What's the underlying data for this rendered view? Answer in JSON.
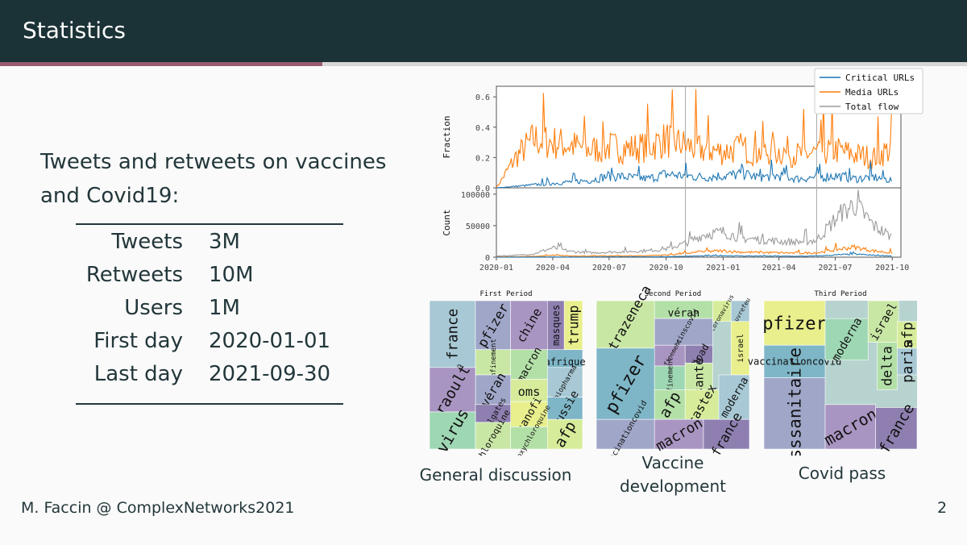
{
  "header": {
    "title": "Statistics",
    "progress_fraction": 0.333
  },
  "intro": {
    "text": "Tweets and retweets on vaccines and Covid19:"
  },
  "stats": [
    {
      "label": "Tweets",
      "value": "3M"
    },
    {
      "label": "Retweets",
      "value": "10M"
    },
    {
      "label": "Users",
      "value": "1M"
    },
    {
      "label": "First day",
      "value": "2020-01-01"
    },
    {
      "label": "Last day",
      "value": "2021-09-30"
    }
  ],
  "footer": {
    "author": "M. Faccin @ ComplexNetworks2021",
    "page": "2"
  },
  "colors": {
    "critical": "#1f77b4",
    "media": "#ff7f0e",
    "total": "#9b9b9b",
    "header_bg": "#1b3236",
    "accent": "#9a5b72"
  },
  "chart_data": [
    {
      "type": "line",
      "ylabel": "Fraction",
      "ylim": [
        0,
        0.67
      ],
      "yticks": [
        "0.0",
        "0.2",
        "0.4",
        "0.6"
      ],
      "xlim": [
        "2020-01-01",
        "2021-10-15"
      ],
      "xticks": [
        "2020-01",
        "2020-04",
        "2020-07",
        "2020-10",
        "2021-01",
        "2021-04",
        "2021-07",
        "2021-10"
      ],
      "vlines": [
        "2020-11-01",
        "2021-06-01"
      ],
      "legend": {
        "position": "top-right",
        "entries": [
          "Critical URLs",
          "Media URLs",
          "Total flow"
        ]
      },
      "series": [
        {
          "name": "Critical URLs",
          "x": [
            "2020-01-01",
            "2020-02-01",
            "2020-03-01",
            "2020-04-01",
            "2020-05-01",
            "2020-06-01",
            "2020-07-01",
            "2020-08-01",
            "2020-09-01",
            "2020-10-01",
            "2020-11-01",
            "2020-12-01",
            "2021-01-01",
            "2021-02-01",
            "2021-03-01",
            "2021-04-01",
            "2021-05-01",
            "2021-06-01",
            "2021-07-01",
            "2021-08-01",
            "2021-09-01",
            "2021-09-30"
          ],
          "y": [
            0.0,
            0.01,
            0.02,
            0.03,
            0.04,
            0.05,
            0.08,
            0.07,
            0.06,
            0.09,
            0.08,
            0.07,
            0.08,
            0.09,
            0.07,
            0.08,
            0.06,
            0.07,
            0.08,
            0.06,
            0.07,
            0.05
          ]
        },
        {
          "name": "Media URLs",
          "x": [
            "2020-01-01",
            "2020-02-01",
            "2020-03-01",
            "2020-04-01",
            "2020-05-01",
            "2020-06-01",
            "2020-07-01",
            "2020-08-01",
            "2020-09-01",
            "2020-10-01",
            "2020-11-01",
            "2020-12-01",
            "2021-01-01",
            "2021-02-01",
            "2021-03-01",
            "2021-04-01",
            "2021-05-01",
            "2021-06-01",
            "2021-07-01",
            "2021-08-01",
            "2021-09-01",
            "2021-09-30"
          ],
          "y": [
            0.0,
            0.2,
            0.32,
            0.3,
            0.28,
            0.25,
            0.27,
            0.26,
            0.27,
            0.32,
            0.28,
            0.25,
            0.24,
            0.26,
            0.23,
            0.24,
            0.22,
            0.23,
            0.25,
            0.22,
            0.2,
            0.26
          ]
        }
      ]
    },
    {
      "type": "line",
      "ylabel": "Count",
      "ylim": [
        0,
        110000
      ],
      "yticks": [
        "0",
        "50000",
        "100000"
      ],
      "xlim": [
        "2020-01-01",
        "2021-10-15"
      ],
      "xticks": [
        "2020-01",
        "2020-04",
        "2020-07",
        "2020-10",
        "2021-01",
        "2021-04",
        "2021-07",
        "2021-10"
      ],
      "vlines": [
        "2020-11-01",
        "2021-06-01"
      ],
      "series": [
        {
          "name": "Total flow",
          "x": [
            "2020-01-01",
            "2020-02-01",
            "2020-03-01",
            "2020-04-01",
            "2020-05-01",
            "2020-06-01",
            "2020-07-01",
            "2020-08-01",
            "2020-09-01",
            "2020-10-01",
            "2020-11-01",
            "2020-12-01",
            "2021-01-01",
            "2021-02-01",
            "2021-03-01",
            "2021-04-01",
            "2021-05-01",
            "2021-06-01",
            "2021-07-01",
            "2021-08-01",
            "2021-09-01",
            "2021-09-30"
          ],
          "y": [
            2000,
            3000,
            5000,
            15000,
            9000,
            7000,
            8000,
            9000,
            10000,
            13000,
            22000,
            36000,
            40000,
            30000,
            28000,
            25000,
            24000,
            27000,
            60000,
            85000,
            50000,
            32000
          ]
        },
        {
          "name": "Media URLs",
          "x": [
            "2020-01-01",
            "2020-02-01",
            "2020-03-01",
            "2020-04-01",
            "2020-05-01",
            "2020-06-01",
            "2020-07-01",
            "2020-08-01",
            "2020-09-01",
            "2020-10-01",
            "2020-11-01",
            "2020-12-01",
            "2021-01-01",
            "2021-02-01",
            "2021-03-01",
            "2021-04-01",
            "2021-05-01",
            "2021-06-01",
            "2021-07-01",
            "2021-08-01",
            "2021-09-01",
            "2021-09-30"
          ],
          "y": [
            500,
            700,
            1200,
            3000,
            2000,
            1800,
            2000,
            2200,
            2500,
            3500,
            6000,
            9000,
            10000,
            8000,
            7500,
            7000,
            6500,
            7000,
            12000,
            16000,
            10000,
            7000
          ]
        },
        {
          "name": "Critical URLs",
          "x": [
            "2020-01-01",
            "2020-02-01",
            "2020-03-01",
            "2020-04-01",
            "2020-05-01",
            "2020-06-01",
            "2020-07-01",
            "2020-08-01",
            "2020-09-01",
            "2020-10-01",
            "2020-11-01",
            "2020-12-01",
            "2021-01-01",
            "2021-02-01",
            "2021-03-01",
            "2021-04-01",
            "2021-05-01",
            "2021-06-01",
            "2021-07-01",
            "2021-08-01",
            "2021-09-01",
            "2021-09-30"
          ],
          "y": [
            0,
            100,
            200,
            400,
            300,
            300,
            500,
            500,
            500,
            800,
            1500,
            2000,
            2500,
            2000,
            1800,
            1700,
            1500,
            1800,
            3500,
            5000,
            3000,
            2000
          ]
        }
      ]
    },
    {
      "type": "heatmap",
      "title": "First Period",
      "caption": "General discussion",
      "words": [
        "france",
        "pfizer",
        "chine",
        "masques",
        "trump",
        "afrique",
        "covid_19",
        "confinement",
        "macron",
        "oms",
        "biopharma",
        "véran",
        "raoult",
        "billgates",
        "sanofi",
        "russie",
        "virus",
        "chloroquine",
        "hydroxychloroquine",
        "afp"
      ]
    },
    {
      "type": "heatmap",
      "title": "Second Period",
      "caption": "Vaccine development",
      "words": [
        "astrazeneca",
        "véran",
        "coronavirus",
        "couvrefeu",
        "vaccinscovid",
        "confinement",
        "ehpad",
        "israel",
        "pfizer",
        "confinement",
        "santé",
        "afp",
        "castex",
        "moderna",
        "vaccinationcovid",
        "macron",
        "france"
      ]
    },
    {
      "type": "heatmap",
      "title": "Third Period",
      "caption": "Covid pass",
      "words": [
        "pfizer",
        "vaccinationcovid",
        "moderna",
        "israel",
        "delta",
        "afp",
        "paris",
        "passsanitaire",
        "macron",
        "france"
      ]
    }
  ]
}
